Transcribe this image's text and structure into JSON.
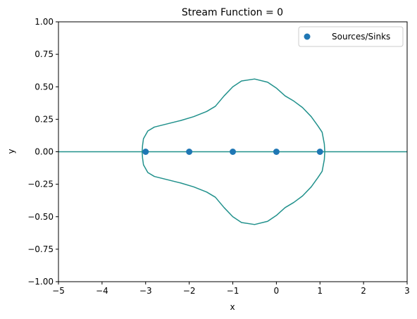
{
  "chart_data": {
    "type": "line",
    "title": "Stream Function = 0",
    "xlabel": "x",
    "ylabel": "y",
    "xlim": [
      -5,
      3
    ],
    "ylim": [
      -1,
      1
    ],
    "x_ticks": [
      -5,
      -4,
      -3,
      -2,
      -1,
      0,
      1,
      2,
      3
    ],
    "x_tick_labels": [
      "−5",
      "−4",
      "−3",
      "−2",
      "−1",
      "0",
      "1",
      "2",
      "3"
    ],
    "y_ticks": [
      1.0,
      0.75,
      0.5,
      0.25,
      0.0,
      -0.25,
      -0.5,
      -0.75,
      -1.0
    ],
    "y_tick_labels": [
      "1.00",
      "0.75",
      "0.50",
      "0.25",
      "0.00",
      "−0.25",
      "−0.50",
      "−0.75",
      "−1.00"
    ],
    "grid": false,
    "legend": {
      "position": "top-right",
      "entries": [
        {
          "label": "Sources/Sinks",
          "marker": "circle",
          "color": "#1f77b4"
        }
      ]
    },
    "contour_color": "#21918c",
    "contour_line": {
      "y": 0,
      "x_range": [
        -5,
        3
      ]
    },
    "contour_upper": [
      [
        -3.08,
        0.0
      ],
      [
        -3.07,
        0.05
      ],
      [
        -3.05,
        0.1
      ],
      [
        -2.95,
        0.16
      ],
      [
        -2.8,
        0.19
      ],
      [
        -2.5,
        0.215
      ],
      [
        -2.2,
        0.24
      ],
      [
        -1.9,
        0.27
      ],
      [
        -1.6,
        0.31
      ],
      [
        -1.4,
        0.35
      ],
      [
        -1.2,
        0.43
      ],
      [
        -1.0,
        0.5
      ],
      [
        -0.8,
        0.545
      ],
      [
        -0.5,
        0.56
      ],
      [
        -0.2,
        0.535
      ],
      [
        0.0,
        0.49
      ],
      [
        0.2,
        0.43
      ],
      [
        0.4,
        0.39
      ],
      [
        0.6,
        0.34
      ],
      [
        0.8,
        0.27
      ],
      [
        0.95,
        0.2
      ],
      [
        1.05,
        0.15
      ],
      [
        1.1,
        0.06
      ],
      [
        1.11,
        0.0
      ]
    ],
    "contour_lower": [
      [
        -3.08,
        0.0
      ],
      [
        -3.07,
        -0.05
      ],
      [
        -3.05,
        -0.1
      ],
      [
        -2.95,
        -0.16
      ],
      [
        -2.8,
        -0.19
      ],
      [
        -2.5,
        -0.215
      ],
      [
        -2.2,
        -0.24
      ],
      [
        -1.9,
        -0.27
      ],
      [
        -1.6,
        -0.31
      ],
      [
        -1.4,
        -0.35
      ],
      [
        -1.2,
        -0.43
      ],
      [
        -1.0,
        -0.5
      ],
      [
        -0.8,
        -0.545
      ],
      [
        -0.5,
        -0.56
      ],
      [
        -0.2,
        -0.535
      ],
      [
        0.0,
        -0.49
      ],
      [
        0.2,
        -0.43
      ],
      [
        0.4,
        -0.39
      ],
      [
        0.6,
        -0.34
      ],
      [
        0.8,
        -0.27
      ],
      [
        0.95,
        -0.2
      ],
      [
        1.05,
        -0.15
      ],
      [
        1.1,
        -0.06
      ],
      [
        1.11,
        0.0
      ]
    ],
    "series": [
      {
        "name": "Sources/Sinks",
        "type": "scatter",
        "color": "#1f77b4",
        "x": [
          -3,
          -2,
          -1,
          0,
          1
        ],
        "y": [
          0,
          0,
          0,
          0,
          0
        ]
      }
    ]
  }
}
